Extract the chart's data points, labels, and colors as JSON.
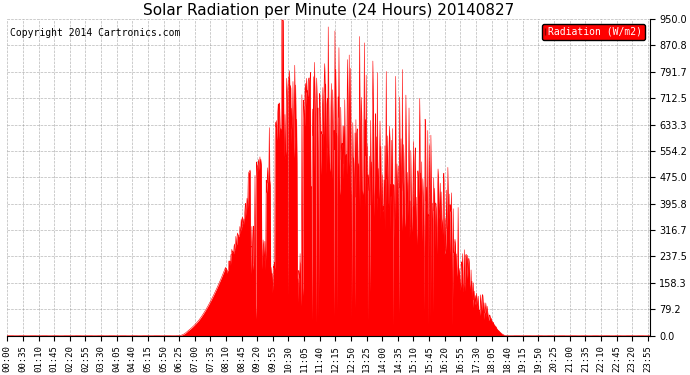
{
  "title": "Solar Radiation per Minute (24 Hours) 20140827",
  "copyright_text": "Copyright 2014 Cartronics.com",
  "legend_label": "Radiation (W/m2)",
  "yticks": [
    0.0,
    79.2,
    158.3,
    237.5,
    316.7,
    395.8,
    475.0,
    554.2,
    633.3,
    712.5,
    791.7,
    870.8,
    950.0
  ],
  "ymin": 0.0,
  "ymax": 950.0,
  "fill_color": "#FF0000",
  "line_color": "#FF0000",
  "bg_color": "#FFFFFF",
  "grid_color": "#888888",
  "title_fontsize": 11,
  "axis_fontsize": 7,
  "copyright_fontsize": 7,
  "xtick_interval_minutes": 35,
  "total_minutes": 1440,
  "dashed_line_color": "#FF0000",
  "sunrise_minute": 385,
  "sunset_minute": 1120
}
